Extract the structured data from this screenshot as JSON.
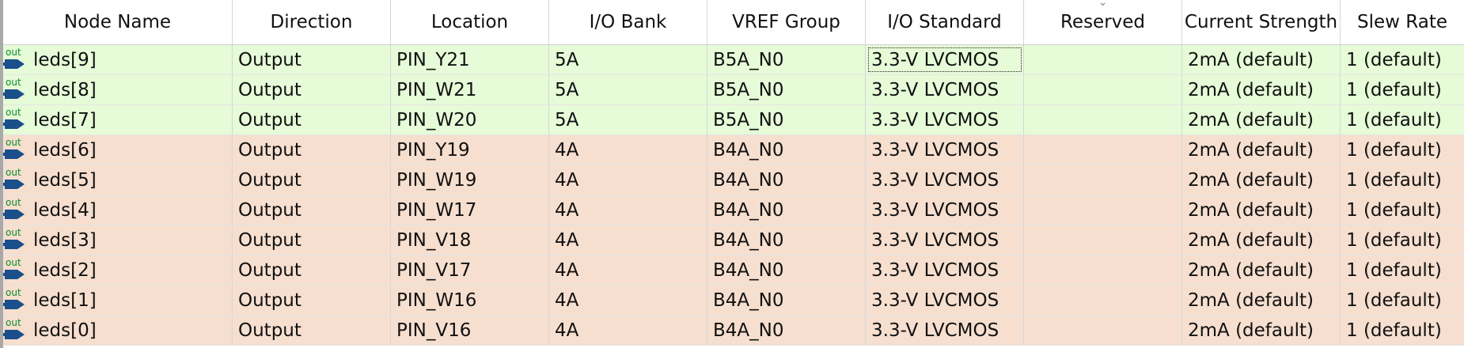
{
  "columns": [
    {
      "label": "Node Name"
    },
    {
      "label": "Direction"
    },
    {
      "label": "Location"
    },
    {
      "label": "I/O Bank"
    },
    {
      "label": "VREF Group"
    },
    {
      "label": "I/O Standard"
    },
    {
      "label": "Reserved",
      "sort_icon": "chevron-down-icon"
    },
    {
      "label": "Current Strength"
    },
    {
      "label": "Slew Rate"
    }
  ],
  "pin_icon": {
    "name": "output-pin-icon",
    "text": "out",
    "color": "#1a4f8b",
    "text_color": "#0b8c2e"
  },
  "row_colors": {
    "bank5": "#e6fbd8",
    "bank4": "#f6dfcf"
  },
  "rows": [
    {
      "node": "leds[9]",
      "direction": "Output",
      "location": "PIN_Y21",
      "bank": "5A",
      "vref": "B5A_N0",
      "standard": "3.3-V LVCMOS",
      "reserved": "",
      "current": "2mA (default)",
      "slew": "1 (default)"
    },
    {
      "node": "leds[8]",
      "direction": "Output",
      "location": "PIN_W21",
      "bank": "5A",
      "vref": "B5A_N0",
      "standard": "3.3-V LVCMOS",
      "reserved": "",
      "current": "2mA (default)",
      "slew": "1 (default)"
    },
    {
      "node": "leds[7]",
      "direction": "Output",
      "location": "PIN_W20",
      "bank": "5A",
      "vref": "B5A_N0",
      "standard": "3.3-V LVCMOS",
      "reserved": "",
      "current": "2mA (default)",
      "slew": "1 (default)"
    },
    {
      "node": "leds[6]",
      "direction": "Output",
      "location": "PIN_Y19",
      "bank": "4A",
      "vref": "B4A_N0",
      "standard": "3.3-V LVCMOS",
      "reserved": "",
      "current": "2mA (default)",
      "slew": "1 (default)"
    },
    {
      "node": "leds[5]",
      "direction": "Output",
      "location": "PIN_W19",
      "bank": "4A",
      "vref": "B4A_N0",
      "standard": "3.3-V LVCMOS",
      "reserved": "",
      "current": "2mA (default)",
      "slew": "1 (default)"
    },
    {
      "node": "leds[4]",
      "direction": "Output",
      "location": "PIN_W17",
      "bank": "4A",
      "vref": "B4A_N0",
      "standard": "3.3-V LVCMOS",
      "reserved": "",
      "current": "2mA (default)",
      "slew": "1 (default)"
    },
    {
      "node": "leds[3]",
      "direction": "Output",
      "location": "PIN_V18",
      "bank": "4A",
      "vref": "B4A_N0",
      "standard": "3.3-V LVCMOS",
      "reserved": "",
      "current": "2mA (default)",
      "slew": "1 (default)"
    },
    {
      "node": "leds[2]",
      "direction": "Output",
      "location": "PIN_V17",
      "bank": "4A",
      "vref": "B4A_N0",
      "standard": "3.3-V LVCMOS",
      "reserved": "",
      "current": "2mA (default)",
      "slew": "1 (default)"
    },
    {
      "node": "leds[1]",
      "direction": "Output",
      "location": "PIN_W16",
      "bank": "4A",
      "vref": "B4A_N0",
      "standard": "3.3-V LVCMOS",
      "reserved": "",
      "current": "2mA (default)",
      "slew": "1 (default)"
    },
    {
      "node": "leds[0]",
      "direction": "Output",
      "location": "PIN_V16",
      "bank": "4A",
      "vref": "B4A_N0",
      "standard": "3.3-V LVCMOS",
      "reserved": "",
      "current": "2mA (default)",
      "slew": "1 (default)"
    }
  ]
}
